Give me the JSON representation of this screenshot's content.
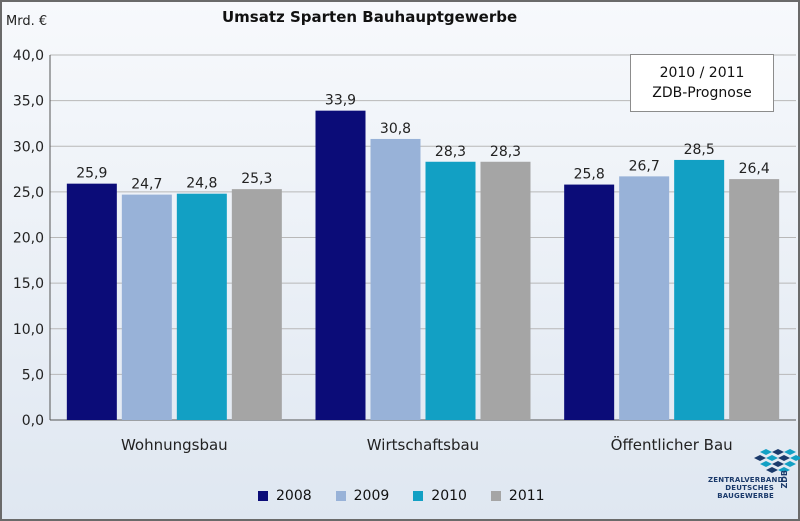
{
  "header": {
    "unit_label": "Mrd. €",
    "title": "Umsatz Sparten Bauhauptgewerbe"
  },
  "note": {
    "line1": "2010 / 2011",
    "line2": "ZDB-Prognose"
  },
  "logo": {
    "line1": "ZENTRALVERBAND",
    "line2": "DEUTSCHES",
    "line3": "BAUGEWERBE",
    "mark": "ZDB"
  },
  "colors": {
    "2008": "#0b0c78",
    "2009": "#98b2d8",
    "2010": "#12a0c4",
    "2011": "#a5a5a5",
    "grid": "#b8b8b8"
  },
  "chart_data": {
    "type": "bar",
    "title": "Umsatz Sparten Bauhauptgewerbe",
    "ylabel": "Mrd. €",
    "xlabel": "",
    "categories": [
      "Wohnungsbau",
      "Wirtschaftsbau",
      "Öffentlicher Bau"
    ],
    "series": [
      {
        "name": "2008",
        "values": [
          25.9,
          33.9,
          25.8
        ],
        "labels": [
          "25,9",
          "33,9",
          "25,8"
        ]
      },
      {
        "name": "2009",
        "values": [
          24.7,
          30.8,
          26.7
        ],
        "labels": [
          "24,7",
          "30,8",
          "26,7"
        ]
      },
      {
        "name": "2010",
        "values": [
          24.8,
          28.3,
          28.5
        ],
        "labels": [
          "24,8",
          "28,3",
          "28,5"
        ]
      },
      {
        "name": "2011",
        "values": [
          25.3,
          28.3,
          26.4
        ],
        "labels": [
          "25,3",
          "28,3",
          "26,4"
        ]
      }
    ],
    "ylim": [
      0,
      40
    ],
    "yticks": [
      "0,0",
      "5,0",
      "10,0",
      "15,0",
      "20,0",
      "25,0",
      "30,0",
      "35,0",
      "40,0"
    ],
    "grid": true,
    "legend": "bottom"
  }
}
